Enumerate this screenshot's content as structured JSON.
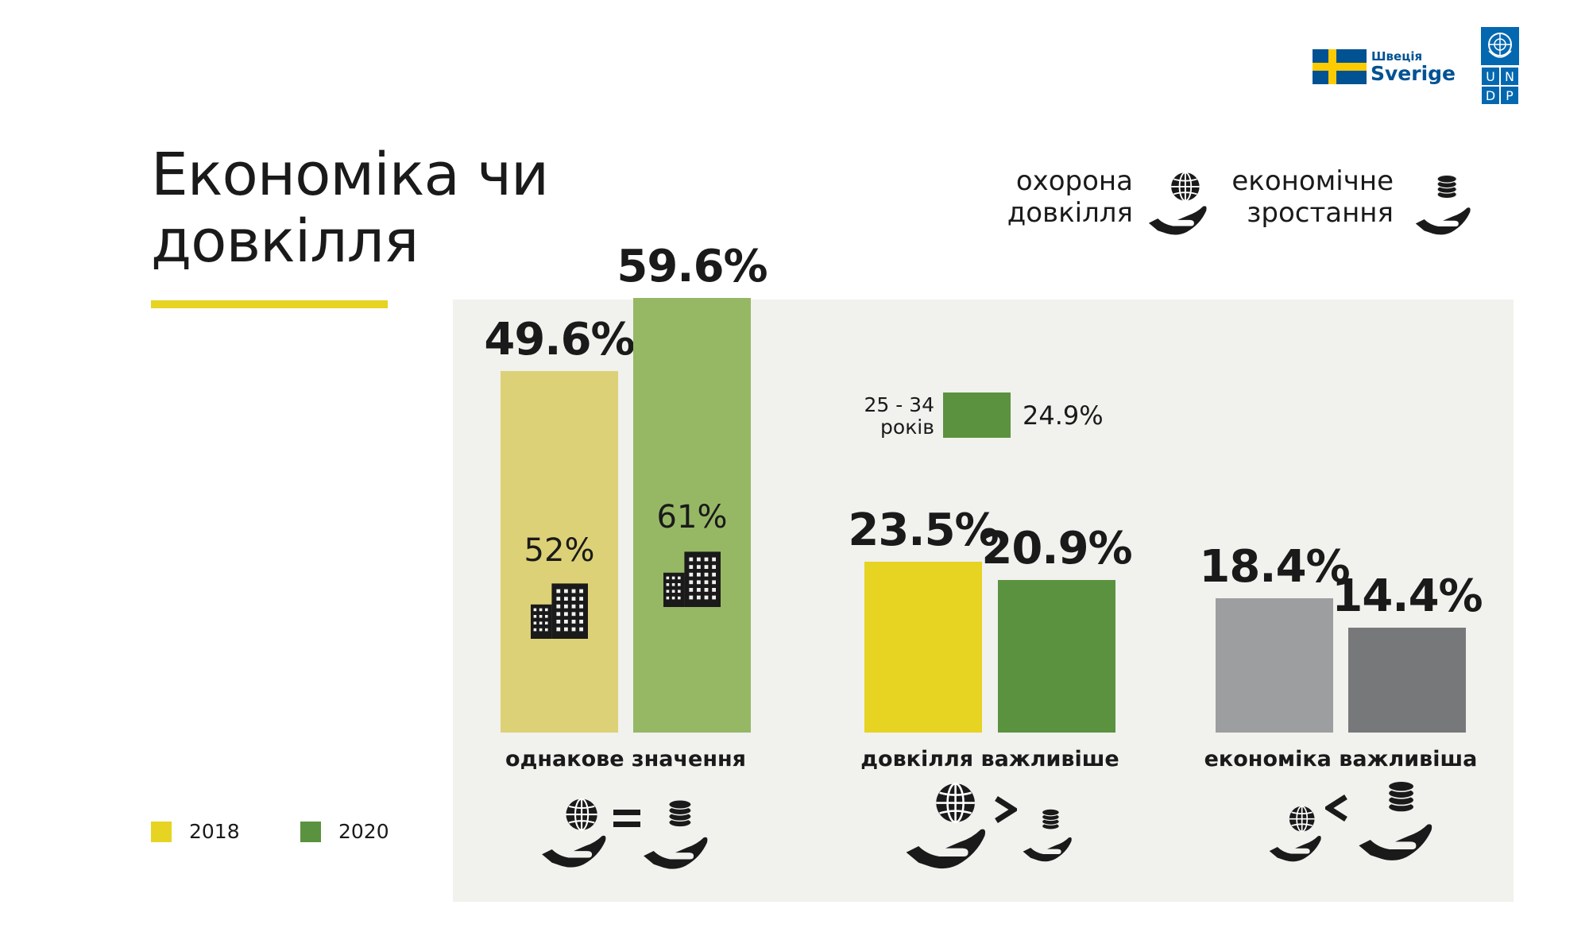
{
  "title_line1": "Економіка чи",
  "title_line2": "довкілля",
  "colors": {
    "y2018": "#ddd177",
    "g2020": "#96b865",
    "env2018": "#e6d322",
    "env2020": "#5b9240",
    "eco2018": "#9d9ea0",
    "eco2020": "#77787a",
    "accent": "#e6d322",
    "panel": "#f1f1ee",
    "se_blue": "#005293",
    "se_yellow": "#fecb00",
    "undp_blue": "#0468b1"
  },
  "logos": {
    "sweden_small": "Швеція",
    "sweden": "Sverige",
    "undp": [
      "U",
      "N",
      "D",
      "P"
    ]
  },
  "key": {
    "env_line1": "охорона",
    "env_line2": "довкілля",
    "eco_line1": "економічне",
    "eco_line2": "зростання"
  },
  "chart_data": {
    "type": "bar",
    "categories": [
      "однакове значення",
      "довкілля важливіше",
      "економіка важливіша"
    ],
    "series": [
      {
        "name": "2018",
        "values": [
          49.6,
          23.5,
          18.4
        ]
      },
      {
        "name": "2020",
        "values": [
          59.6,
          20.9,
          14.4
        ]
      }
    ],
    "value_labels": [
      [
        "49.6%",
        "59.6%"
      ],
      [
        "23.5%",
        "20.9%"
      ],
      [
        "18.4%",
        "14.4%"
      ]
    ],
    "inner_labels": {
      "2018": "52%",
      "2020": "61%"
    },
    "ylim": [
      0,
      60
    ],
    "legend": [
      "2018",
      "2020"
    ],
    "annotation": {
      "age_line1": "25 - 34",
      "age_line2": "років",
      "value": 24.9,
      "label": "24.9%"
    }
  }
}
